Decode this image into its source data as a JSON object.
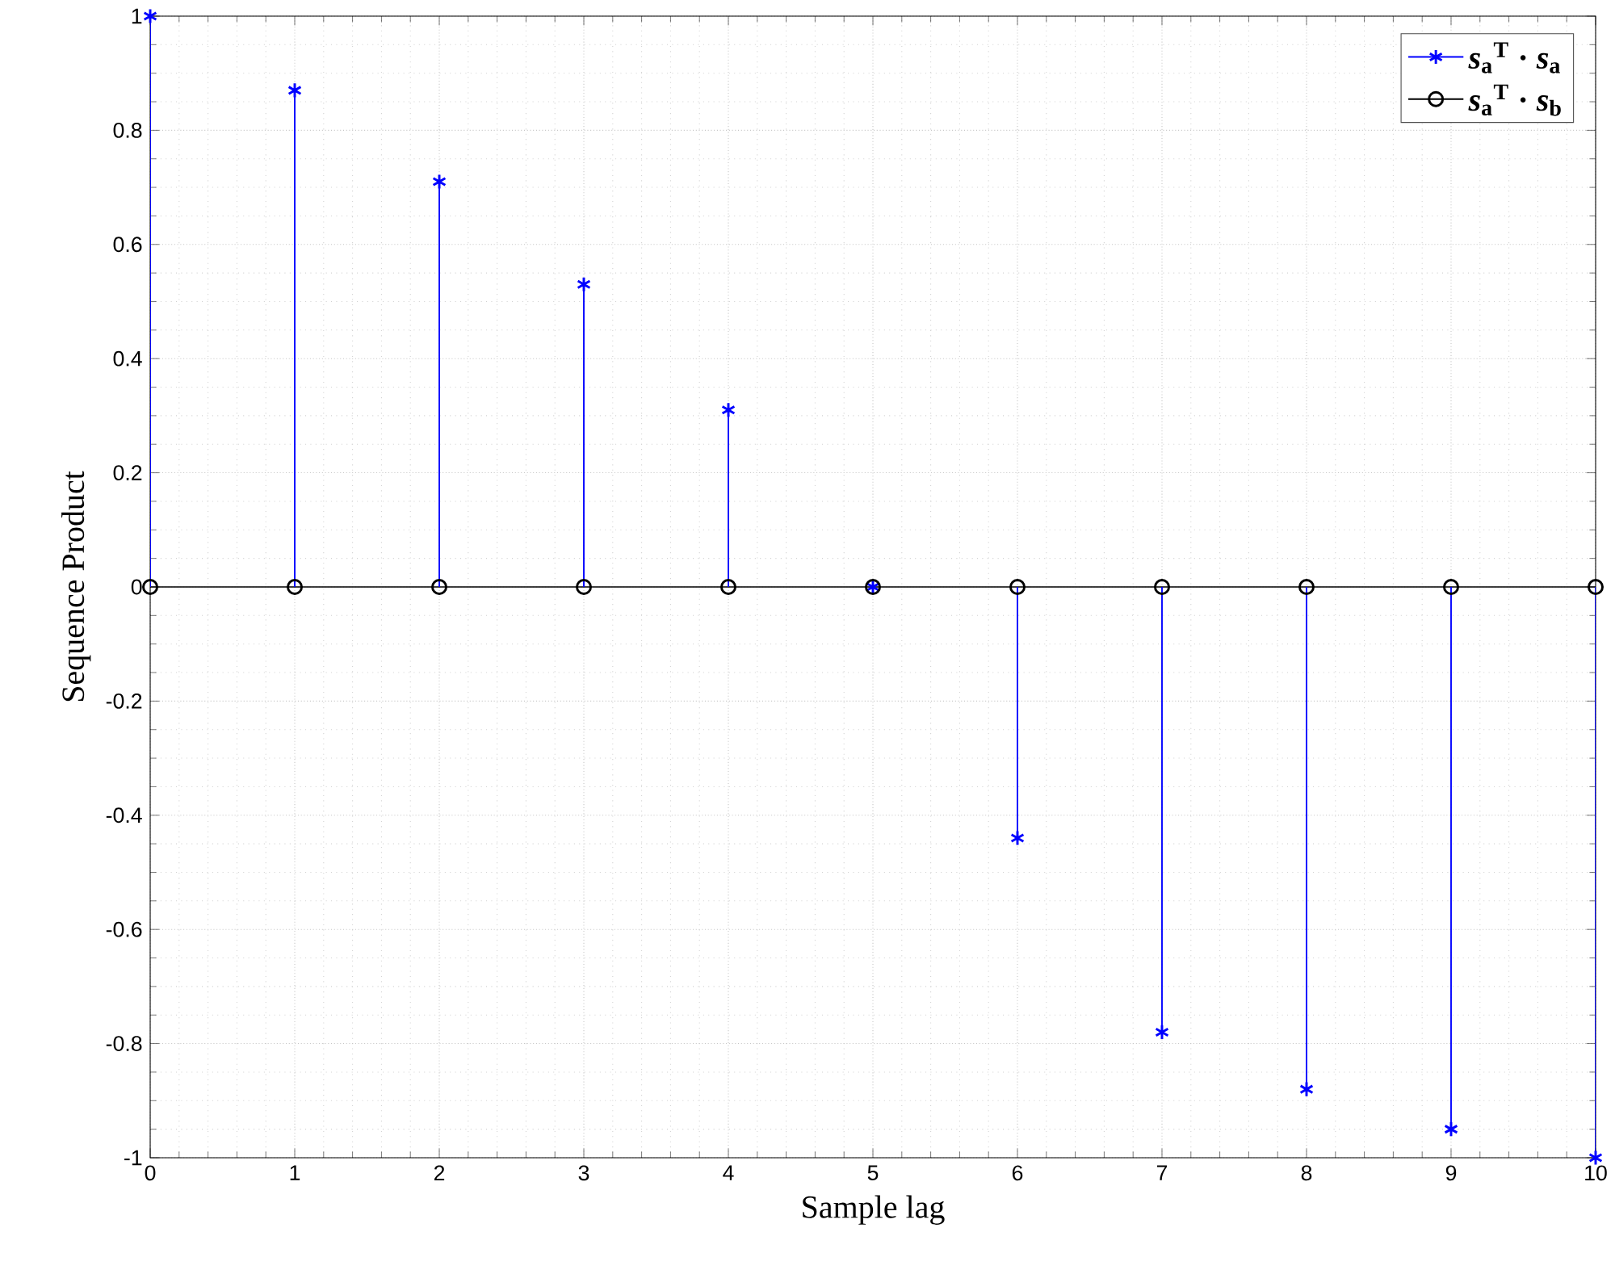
{
  "chart_data": {
    "type": "lollipop",
    "xlabel": "Sample lag",
    "ylabel": "Sequence Product",
    "x": [
      0,
      1,
      2,
      3,
      4,
      5,
      6,
      7,
      8,
      9,
      10
    ],
    "series": [
      {
        "name": "*s*$_{a}$$^{T}$ · *s*$_{a}$",
        "color": "#0000ff",
        "marker": "cross",
        "values": [
          1,
          0.87,
          0.71,
          0.53,
          0.31,
          0,
          -0.44,
          -0.78,
          -0.88,
          -0.95,
          -1
        ]
      },
      {
        "name": "*s*$_{a}$$^{T}$ · *s*$_{b}$",
        "color": "#000000",
        "marker": "circle",
        "values": [
          0,
          0,
          0,
          0,
          0,
          0,
          0,
          0,
          0,
          0,
          0
        ]
      }
    ],
    "xlim": [
      0,
      10
    ],
    "ylim": [
      -1,
      1
    ],
    "xticks": [
      0,
      1,
      2,
      3,
      4,
      5,
      6,
      7,
      8,
      9,
      10
    ],
    "yticks": [
      -1,
      -0.8,
      -0.6,
      -0.4,
      -0.2,
      0,
      0.2,
      0.4,
      0.6,
      0.8,
      1
    ],
    "ref_lines": [
      {
        "axis": "y",
        "value": 0,
        "color": "#000000"
      }
    ],
    "grid": true,
    "legend": "top right"
  }
}
